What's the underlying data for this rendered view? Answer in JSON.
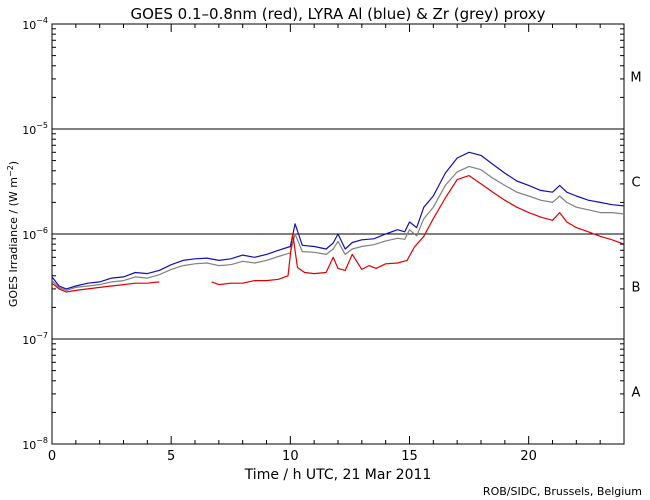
{
  "chart_data": {
    "type": "line",
    "title": "GOES 0.1–0.8nm (red), LYRA Al (blue) & Zr (grey) proxy",
    "xlabel": "Time / h UTC, 21 Mar 2011",
    "ylabel_main": "GOES Irradiance / (W m",
    "ylabel_sup": "−2",
    "ylabel_close": ")",
    "credit": "ROB/SIDC, Brussels, Belgium",
    "xlim": [
      0,
      24
    ],
    "ylim": [
      1e-08,
      0.0001
    ],
    "y_scale": "log",
    "x_ticks": [
      0,
      5,
      10,
      15,
      20
    ],
    "y_ticks": [
      {
        "value": 1e-08,
        "base": "10",
        "exp": "−8"
      },
      {
        "value": 1e-07,
        "base": "10",
        "exp": "−7"
      },
      {
        "value": 1e-06,
        "base": "10",
        "exp": "−6"
      },
      {
        "value": 1e-05,
        "base": "10",
        "exp": "−5"
      },
      {
        "value": 0.0001,
        "base": "10",
        "exp": "−4"
      }
    ],
    "reference_lines": [
      1e-07,
      1e-06,
      1e-05
    ],
    "flare_classes": [
      {
        "label": "A",
        "value": 3.16e-08
      },
      {
        "label": "B",
        "value": 3.16e-07
      },
      {
        "label": "C",
        "value": 3.16e-06
      },
      {
        "label": "M",
        "value": 3.16e-05
      }
    ],
    "series": [
      {
        "name": "LYRA Zr (grey)",
        "color": "#808080",
        "x": [
          0,
          0.3,
          0.6,
          1,
          1.5,
          2,
          2.5,
          3,
          3.5,
          4,
          4.5,
          5,
          5.5,
          6,
          6.5,
          7,
          7.5,
          8,
          8.5,
          9,
          9.5,
          10,
          10.2,
          10.5,
          11,
          11.5,
          11.8,
          12,
          12.3,
          12.6,
          13,
          13.5,
          14,
          14.5,
          14.8,
          15,
          15.3,
          15.6,
          16,
          16.5,
          17,
          17.5,
          18,
          18.5,
          19,
          19.5,
          20,
          20.5,
          21,
          21.3,
          21.6,
          22,
          22.5,
          23,
          23.5,
          24
        ],
        "y": [
          3.6e-07,
          3.1e-07,
          2.9e-07,
          3.1e-07,
          3.2e-07,
          3.3e-07,
          3.5e-07,
          3.6e-07,
          3.9e-07,
          3.8e-07,
          4.1e-07,
          4.6e-07,
          5e-07,
          5.2e-07,
          5.3e-07,
          5e-07,
          5.1e-07,
          5.5e-07,
          5.3e-07,
          5.6e-07,
          6.1e-07,
          6.6e-07,
          1e-06,
          6.8e-07,
          6.7e-07,
          6.4e-07,
          7.2e-07,
          8.5e-07,
          6.4e-07,
          7.2e-07,
          7.6e-07,
          7.9e-07,
          8.6e-07,
          9.1e-07,
          8.9e-07,
          1.1e-06,
          9.6e-07,
          1.4e-06,
          1.8e-06,
          2.9e-06,
          3.9e-06,
          4.4e-06,
          4.1e-06,
          3.4e-06,
          2.9e-06,
          2.5e-06,
          2.3e-06,
          2.1e-06,
          2e-06,
          2.3e-06,
          2e-06,
          1.8e-06,
          1.7e-06,
          1.6e-06,
          1.6e-06,
          1.55e-06
        ]
      },
      {
        "name": "LYRA Al (blue)",
        "color": "#1010b8",
        "x": [
          0,
          0.3,
          0.6,
          1,
          1.5,
          2,
          2.5,
          3,
          3.5,
          4,
          4.5,
          5,
          5.5,
          6,
          6.5,
          7,
          7.5,
          8,
          8.5,
          9,
          9.5,
          10,
          10.2,
          10.5,
          11,
          11.5,
          11.8,
          12,
          12.3,
          12.6,
          13,
          13.5,
          14,
          14.5,
          14.8,
          15,
          15.3,
          15.6,
          16,
          16.5,
          17,
          17.5,
          18,
          18.5,
          19,
          19.5,
          20,
          20.5,
          21,
          21.3,
          21.6,
          22,
          22.5,
          23,
          23.5,
          24
        ],
        "y": [
          3.9e-07,
          3.2e-07,
          3e-07,
          3.2e-07,
          3.4e-07,
          3.5e-07,
          3.8e-07,
          3.9e-07,
          4.3e-07,
          4.2e-07,
          4.5e-07,
          5.1e-07,
          5.6e-07,
          5.8e-07,
          5.9e-07,
          5.6e-07,
          5.8e-07,
          6.3e-07,
          6e-07,
          6.4e-07,
          7e-07,
          7.6e-07,
          1.25e-06,
          7.8e-07,
          7.6e-07,
          7.2e-07,
          8.2e-07,
          1e-06,
          7.2e-07,
          8.3e-07,
          8.8e-07,
          9e-07,
          1e-06,
          1.1e-06,
          1.05e-06,
          1.3e-06,
          1.15e-06,
          1.8e-06,
          2.3e-06,
          3.8e-06,
          5.3e-06,
          6e-06,
          5.6e-06,
          4.6e-06,
          3.8e-06,
          3.2e-06,
          2.9e-06,
          2.6e-06,
          2.5e-06,
          2.9e-06,
          2.5e-06,
          2.3e-06,
          2.1e-06,
          2e-06,
          1.9e-06,
          1.85e-06
        ]
      },
      {
        "name": "GOES 0.1–0.8nm (red)",
        "color": "#e00000",
        "x": [
          0,
          0.3,
          0.6,
          1,
          1.5,
          2,
          2.5,
          3,
          3.5,
          4,
          4.5,
          null,
          6.7,
          7,
          7.5,
          8,
          8.5,
          9,
          9.5,
          9.9,
          10.1,
          10.3,
          10.6,
          11,
          11.5,
          11.8,
          12,
          12.3,
          12.6,
          13,
          13.3,
          13.6,
          14,
          14.5,
          14.9,
          15.2,
          15.6,
          16,
          16.5,
          17,
          17.5,
          18,
          18.5,
          19,
          19.5,
          20,
          20.5,
          21,
          21.3,
          21.6,
          22,
          22.5,
          23,
          23.5,
          24
        ],
        "y": [
          3.4e-07,
          3e-07,
          2.8e-07,
          2.9e-07,
          3e-07,
          3.1e-07,
          3.2e-07,
          3.3e-07,
          3.4e-07,
          3.4e-07,
          3.5e-07,
          null,
          3.5e-07,
          3.3e-07,
          3.4e-07,
          3.4e-07,
          3.6e-07,
          3.6e-07,
          3.7e-07,
          4e-07,
          1e-06,
          4.8e-07,
          4.3e-07,
          4.2e-07,
          4.3e-07,
          6e-07,
          4.7e-07,
          4.5e-07,
          6.4e-07,
          4.6e-07,
          5e-07,
          4.7e-07,
          5.2e-07,
          5.3e-07,
          5.6e-07,
          7.5e-07,
          9.5e-07,
          1.4e-06,
          2.2e-06,
          3.3e-06,
          3.6e-06,
          3e-06,
          2.5e-06,
          2.1e-06,
          1.8e-06,
          1.6e-06,
          1.45e-06,
          1.35e-06,
          1.6e-06,
          1.3e-06,
          1.15e-06,
          1.05e-06,
          9.5e-07,
          8.8e-07,
          8e-07
        ]
      }
    ]
  }
}
